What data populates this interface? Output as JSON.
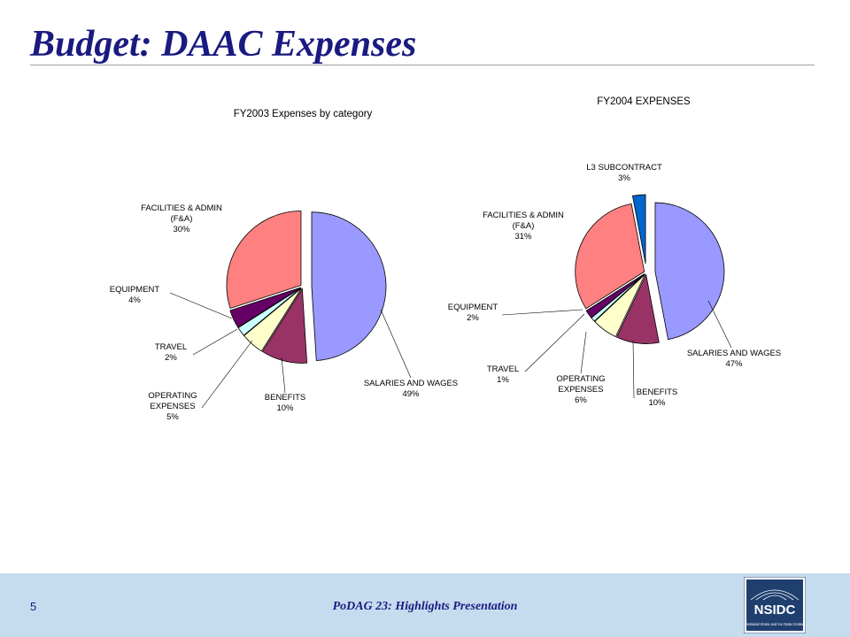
{
  "slide": {
    "title": "Budget: DAAC Expenses",
    "page_number": "5",
    "footer_text": "PoDAG 23: Highlights Presentation",
    "logo_text": "NSIDC",
    "logo_subtext": "National Snow and Ice Data Center"
  },
  "chart_data": [
    {
      "type": "pie",
      "title": "FY2003 Expenses by category",
      "slices": [
        {
          "label": [
            "SALARIES AND WAGES",
            "49%"
          ],
          "value": 49,
          "color": "#9999ff",
          "exploded": true
        },
        {
          "label": [
            "BENEFITS",
            "10%"
          ],
          "value": 10,
          "color": "#993366",
          "exploded": false
        },
        {
          "label": [
            "OPERATING",
            "EXPENSES",
            "5%"
          ],
          "value": 5,
          "color": "#ffffcc",
          "exploded": false
        },
        {
          "label": [
            "TRAVEL",
            "2%"
          ],
          "value": 2,
          "color": "#ccffff",
          "exploded": false
        },
        {
          "label": [
            "EQUIPMENT",
            "4%"
          ],
          "value": 4,
          "color": "#660066",
          "exploded": false
        },
        {
          "label": [
            "FACILITIES & ADMIN",
            "(F&A)",
            "30%"
          ],
          "value": 30,
          "color": "#ff8080",
          "exploded": false
        }
      ]
    },
    {
      "type": "pie",
      "title": "FY2004 EXPENSES",
      "slices": [
        {
          "label": [
            "SALARIES AND WAGES",
            "47%"
          ],
          "value": 47,
          "color": "#9999ff",
          "exploded": true
        },
        {
          "label": [
            "BENEFITS",
            "10%"
          ],
          "value": 10,
          "color": "#993366",
          "exploded": false
        },
        {
          "label": [
            "OPERATING",
            "EXPENSES",
            "6%"
          ],
          "value": 6,
          "color": "#ffffcc",
          "exploded": false
        },
        {
          "label": [
            "TRAVEL",
            "1%"
          ],
          "value": 1,
          "color": "#ccffff",
          "exploded": false
        },
        {
          "label": [
            "EQUIPMENT",
            "2%"
          ],
          "value": 2,
          "color": "#660066",
          "exploded": false
        },
        {
          "label": [
            "FACILITIES & ADMIN",
            "(F&A)",
            "31%"
          ],
          "value": 31,
          "color": "#ff8080",
          "exploded": false
        },
        {
          "label": [
            "L3 SUBCONTRACT",
            "3%"
          ],
          "value": 3,
          "color": "#0066cc",
          "exploded": true
        }
      ]
    }
  ]
}
